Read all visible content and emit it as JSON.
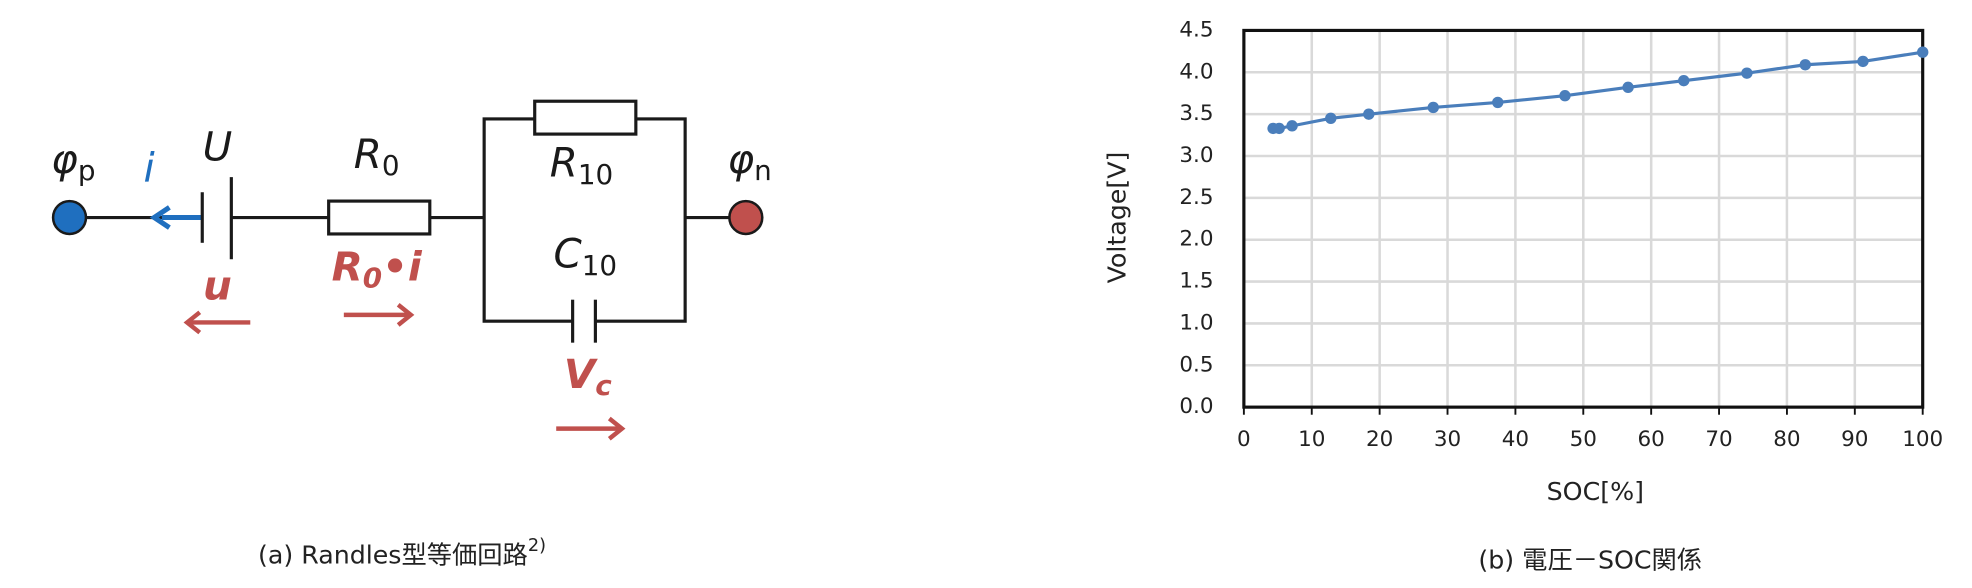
{
  "circuit": {
    "phi_p": {
      "base": "φ",
      "sub": "p"
    },
    "i": "i",
    "U": "U",
    "R0": {
      "base": "R",
      "sub": "0"
    },
    "R10": {
      "base": "R",
      "sub": "10"
    },
    "C10": {
      "base": "C",
      "sub": "10"
    },
    "phi_n": {
      "base": "φ",
      "sub": "n"
    },
    "u": "u",
    "R0i": {
      "base": "R",
      "sub": "0",
      "rest": "•i"
    },
    "Vc": {
      "base": "V",
      "sub": "c"
    }
  },
  "captions": [
    {
      "text": "(a) Randles型等価回路",
      "sup": "2)"
    },
    {
      "text": "(b) 電圧－SOC関係"
    }
  ],
  "chart_data": {
    "type": "line",
    "x_label": "SOC[%]",
    "y_label": "Voltage[V]",
    "series": [
      {
        "color": "#4a7ebb",
        "x": [
          4.3,
          5.2,
          7.1,
          12.8,
          18.4,
          27.9,
          37.4,
          47.3,
          56.6,
          64.8,
          74.1,
          82.7,
          91.2,
          100
        ],
        "values": [
          3.33,
          3.33,
          3.36,
          3.45,
          3.5,
          3.58,
          3.64,
          3.72,
          3.82,
          3.9,
          3.99,
          4.09,
          4.13,
          4.24
        ]
      }
    ],
    "xlim": [
      0,
      100
    ],
    "xticks": [
      0,
      10,
      20,
      30,
      40,
      50,
      60,
      70,
      80,
      90,
      100
    ],
    "ylim": [
      0,
      4.5
    ],
    "yticks": [
      {
        "value": 0,
        "label": "0.0"
      },
      0.5,
      {
        "value": 1,
        "label": "1.0"
      },
      1.5,
      {
        "value": 2,
        "label": "2.0"
      },
      2.5,
      {
        "value": 3,
        "label": "3.0"
      },
      3.5,
      {
        "value": 4,
        "label": "4.0"
      },
      4.5
    ],
    "grid": true
  }
}
